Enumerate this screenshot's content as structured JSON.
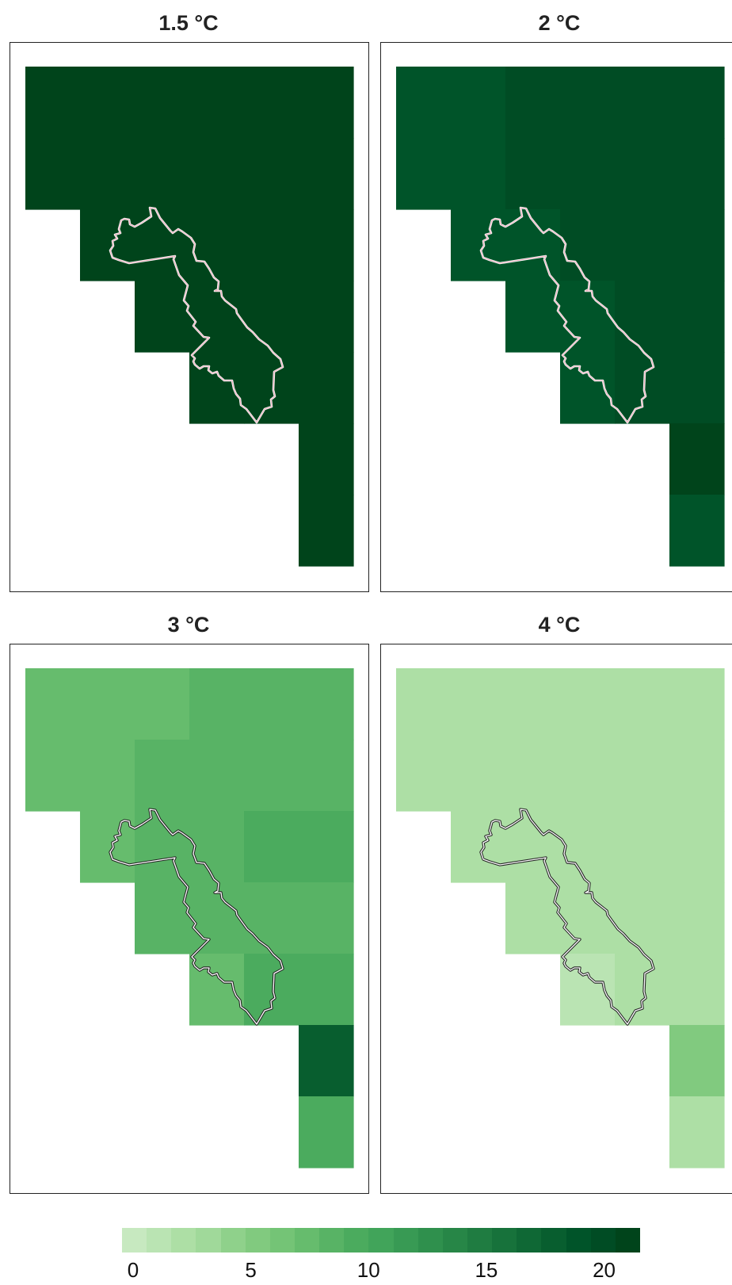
{
  "chart_data": {
    "type": "heatmap",
    "grid_columns": 6,
    "grid_rows": 7,
    "panels": [
      {
        "title": "1.5 °C",
        "values": [
          [
            21,
            21,
            21,
            21,
            21,
            21
          ],
          [
            21,
            21,
            21,
            21,
            21,
            21
          ],
          [
            null,
            21,
            21,
            21,
            21,
            21
          ],
          [
            null,
            null,
            21,
            21,
            21,
            21
          ],
          [
            null,
            null,
            null,
            21,
            21,
            21
          ],
          [
            null,
            null,
            null,
            null,
            null,
            21
          ],
          [
            null,
            null,
            null,
            null,
            null,
            21
          ]
        ],
        "outline_style": "light"
      },
      {
        "title": "2 °C",
        "values": [
          [
            19,
            19,
            20,
            20,
            20,
            20
          ],
          [
            19,
            19,
            20,
            20,
            20,
            20
          ],
          [
            null,
            19,
            19.5,
            20,
            20,
            20
          ],
          [
            null,
            null,
            19,
            19.5,
            20,
            20
          ],
          [
            null,
            null,
            null,
            19,
            20,
            20
          ],
          [
            null,
            null,
            null,
            null,
            null,
            21
          ],
          [
            null,
            null,
            null,
            null,
            null,
            19
          ]
        ],
        "outline_style": "light"
      },
      {
        "title": "3 °C",
        "values": [
          [
            7.5,
            7.5,
            8,
            9,
            9,
            9
          ],
          [
            7.5,
            7.5,
            9,
            9,
            9,
            9
          ],
          [
            null,
            7.5,
            8.5,
            9,
            10,
            10
          ],
          [
            null,
            null,
            8.5,
            9,
            9,
            9
          ],
          [
            null,
            null,
            null,
            7.5,
            10,
            10
          ],
          [
            null,
            null,
            null,
            null,
            null,
            18
          ],
          [
            null,
            null,
            null,
            null,
            null,
            10
          ]
        ],
        "outline_style": "dark"
      },
      {
        "title": "4 °C",
        "values": [
          [
            2.5,
            2.5,
            2.5,
            3,
            3,
            3
          ],
          [
            2.5,
            2.5,
            3,
            3,
            3,
            3
          ],
          [
            null,
            2.5,
            2.5,
            3,
            3,
            3
          ],
          [
            null,
            null,
            2.5,
            3,
            3,
            3
          ],
          [
            null,
            null,
            null,
            1.5,
            3,
            3
          ],
          [
            null,
            null,
            null,
            null,
            null,
            5.5
          ],
          [
            null,
            null,
            null,
            null,
            null,
            2.5
          ]
        ],
        "outline_style": "dark"
      }
    ],
    "colorbar": {
      "min": 0,
      "max": 22,
      "ticks": [
        "0",
        "5",
        "10",
        "15",
        "20"
      ],
      "tick_values": [
        0,
        5,
        10,
        15,
        20
      ],
      "colors": [
        "#c7e9c0",
        "#bae4b3",
        "#addfa5",
        "#a0d99a",
        "#8fd18b",
        "#81ca7f",
        "#74c476",
        "#66bc6d",
        "#58b365",
        "#4bab5e",
        "#41a45a",
        "#389a54",
        "#2f904d",
        "#278647",
        "#1f7c41",
        "#17723b",
        "#0f6835",
        "#085e2f",
        "#005429",
        "#004c24",
        "#00441b"
      ]
    },
    "grid": false,
    "legend": "bottom"
  }
}
